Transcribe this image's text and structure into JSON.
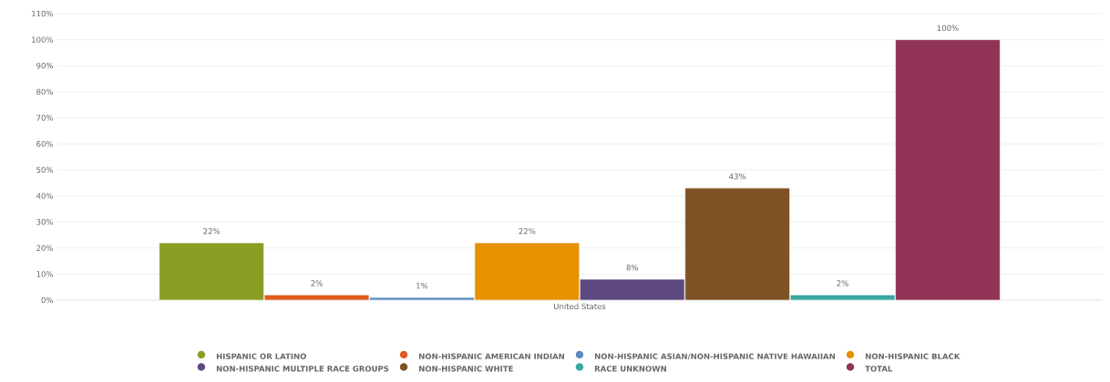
{
  "chart_data": {
    "type": "bar",
    "categories": [
      "United States"
    ],
    "series": [
      {
        "name": "HISPANIC OR LATINO",
        "color": "#8c9d24",
        "values": [
          22
        ],
        "value_labels": [
          "22%"
        ]
      },
      {
        "name": "NON-HISPANIC AMERICAN INDIAN",
        "color": "#e05a1e",
        "values": [
          2
        ],
        "value_labels": [
          "2%"
        ]
      },
      {
        "name": "NON-HISPANIC ASIAN/NON-HISPANIC NATIVE HAWAIIAN",
        "color": "#5b8bbf",
        "values": [
          1
        ],
        "value_labels": [
          "1%"
        ]
      },
      {
        "name": "NON-HISPANIC BLACK",
        "color": "#e69100",
        "values": [
          22
        ],
        "value_labels": [
          "22%"
        ]
      },
      {
        "name": "NON-HISPANIC MULTIPLE RACE GROUPS",
        "color": "#5d4880",
        "values": [
          8
        ],
        "value_labels": [
          "8%"
        ]
      },
      {
        "name": "NON-HISPANIC WHITE",
        "color": "#7f5124",
        "values": [
          43
        ],
        "value_labels": [
          "43%"
        ]
      },
      {
        "name": "RACE UNKNOWN",
        "color": "#3aa6a0",
        "values": [
          2
        ],
        "value_labels": [
          "2%"
        ]
      },
      {
        "name": "TOTAL",
        "color": "#923457",
        "values": [
          100
        ],
        "value_labels": [
          "100%"
        ]
      }
    ],
    "ylim": [
      0,
      110
    ],
    "yticks": [
      {
        "value": 0,
        "label": "0%"
      },
      {
        "value": 10,
        "label": "10%"
      },
      {
        "value": 20,
        "label": "20%"
      },
      {
        "value": 30,
        "label": "30%"
      },
      {
        "value": 40,
        "label": "40%"
      },
      {
        "value": 50,
        "label": "50%"
      },
      {
        "value": 60,
        "label": "60%"
      },
      {
        "value": 70,
        "label": "70%"
      },
      {
        "value": 80,
        "label": "80%"
      },
      {
        "value": 90,
        "label": "90%"
      },
      {
        "value": 100,
        "label": "100%"
      },
      {
        "value": 110,
        "label": "110%"
      }
    ],
    "grid": "y",
    "legend": "bottom"
  }
}
